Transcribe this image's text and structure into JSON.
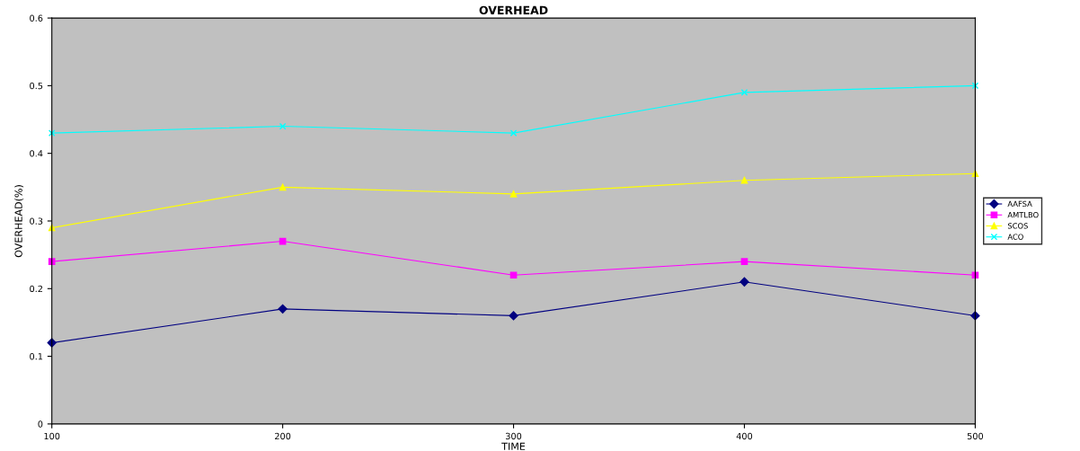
{
  "chart_data": {
    "type": "line",
    "title": "OVERHEAD",
    "xlabel": "TIME",
    "ylabel": "OVERHEAD(%)",
    "x": [
      100,
      200,
      300,
      400,
      500
    ],
    "series": [
      {
        "name": "AAFSA",
        "color": "#000080",
        "marker": "diamond",
        "values": [
          0.12,
          0.17,
          0.16,
          0.21,
          0.16
        ]
      },
      {
        "name": "AMTLBO",
        "color": "#ff00ff",
        "marker": "square",
        "values": [
          0.24,
          0.27,
          0.22,
          0.24,
          0.22
        ]
      },
      {
        "name": "SCOS",
        "color": "#ffff00",
        "marker": "triangle",
        "values": [
          0.29,
          0.35,
          0.34,
          0.36,
          0.37
        ]
      },
      {
        "name": "ACO",
        "color": "#00ffff",
        "marker": "cross",
        "values": [
          0.43,
          0.44,
          0.43,
          0.49,
          0.5
        ]
      }
    ],
    "xlim": [
      100,
      500
    ],
    "xticks": [
      100,
      200,
      300,
      400,
      500
    ],
    "ylim": [
      0,
      0.6
    ],
    "yticks": [
      0,
      0.1,
      0.2,
      0.3,
      0.4,
      0.5,
      0.6
    ],
    "grid": false,
    "legend": "right",
    "line_style": "solid"
  }
}
